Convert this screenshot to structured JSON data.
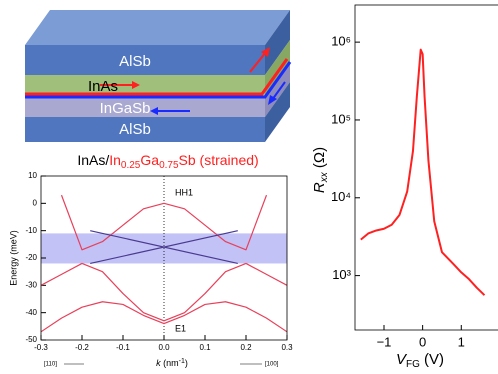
{
  "diagram": {
    "layers": [
      "AlSb",
      "InAs",
      "InGaSb",
      "AlSb"
    ]
  },
  "chart_data": [
    {
      "type": "line",
      "title": [
        "InAs/",
        "In",
        "0.25",
        "Ga",
        "0.75",
        "Sb (strained)"
      ],
      "ylabel": "Energy (meV)",
      "xlabel": [
        "k",
        " (nm",
        "-1",
        ")"
      ],
      "annotations": [
        "HH1",
        "E1",
        "[110]",
        "[100]"
      ],
      "xlim": [
        -0.3,
        0.3
      ],
      "ylim": [
        -50,
        10
      ],
      "xticks": [
        -0.3,
        -0.2,
        -0.1,
        {
          "value": 0,
          "label": "0.0"
        },
        0.1,
        0.2,
        0.3
      ],
      "yticks": [
        -50,
        -40,
        -30,
        -20,
        -10,
        0,
        10
      ],
      "shaded_range": [
        -22,
        -11
      ],
      "shade_color": "#8f8fef",
      "x": [
        -0.3,
        -0.25,
        -0.2,
        -0.15,
        -0.1,
        -0.05,
        0,
        0.05,
        0.1,
        0.15,
        0.2,
        0.25,
        0.3
      ],
      "series": [
        {
          "color": "#e8405a",
          "values": [
            null,
            3,
            -17,
            -14,
            -8,
            -2,
            0,
            -2,
            -8,
            -14,
            -17,
            3,
            null
          ]
        },
        {
          "color": "#e8405a",
          "values": [
            -30,
            -26,
            -22,
            -25,
            -33,
            -40,
            -43,
            -40,
            -33,
            -25,
            -22,
            -26,
            -30
          ]
        },
        {
          "color": "#e8405a",
          "values": [
            -47,
            -42,
            -38,
            -36,
            -37,
            -41,
            -44,
            -41,
            -37,
            -36,
            -38,
            -42,
            -47
          ]
        },
        {
          "color": "#4a3a90",
          "x": [
            -0.18,
            0.18
          ],
          "values": [
            -10,
            -22
          ]
        },
        {
          "color": "#4a3a90",
          "x": [
            -0.18,
            0.18
          ],
          "values": [
            -22,
            -10
          ]
        }
      ]
    },
    {
      "type": "line",
      "log_y": true,
      "ylabel": [
        "R",
        "xx",
        " (Ω)"
      ],
      "xlabel": [
        "V",
        "FG",
        " (V)"
      ],
      "xlim": [
        -1.75,
        1.95
      ],
      "ylim": [
        200,
        3000000
      ],
      "xticks": [
        {
          "value": -1,
          "label": "−1"
        },
        0,
        1
      ],
      "yticks": [
        {
          "value": 1000,
          "label": "10³"
        },
        {
          "value": 10000,
          "label": "10⁴"
        },
        {
          "value": 100000,
          "label": "10⁵"
        },
        {
          "value": 1000000,
          "label": "10⁶"
        }
      ],
      "x": [
        -1.6,
        -1.4,
        -1.2,
        -1.0,
        -0.8,
        -0.6,
        -0.4,
        -0.25,
        -0.15,
        -0.05,
        0,
        0.05,
        0.15,
        0.3,
        0.5,
        0.8,
        1.0,
        1.2,
        1.4,
        1.6
      ],
      "series": [
        {
          "color": "#ff2020",
          "values": [
            2900,
            3500,
            3800,
            4000,
            4500,
            6000,
            12000,
            40000,
            200000,
            800000,
            700000,
            200000,
            30000,
            5000,
            2000,
            1400,
            1100,
            900,
            700,
            560
          ]
        }
      ]
    }
  ]
}
